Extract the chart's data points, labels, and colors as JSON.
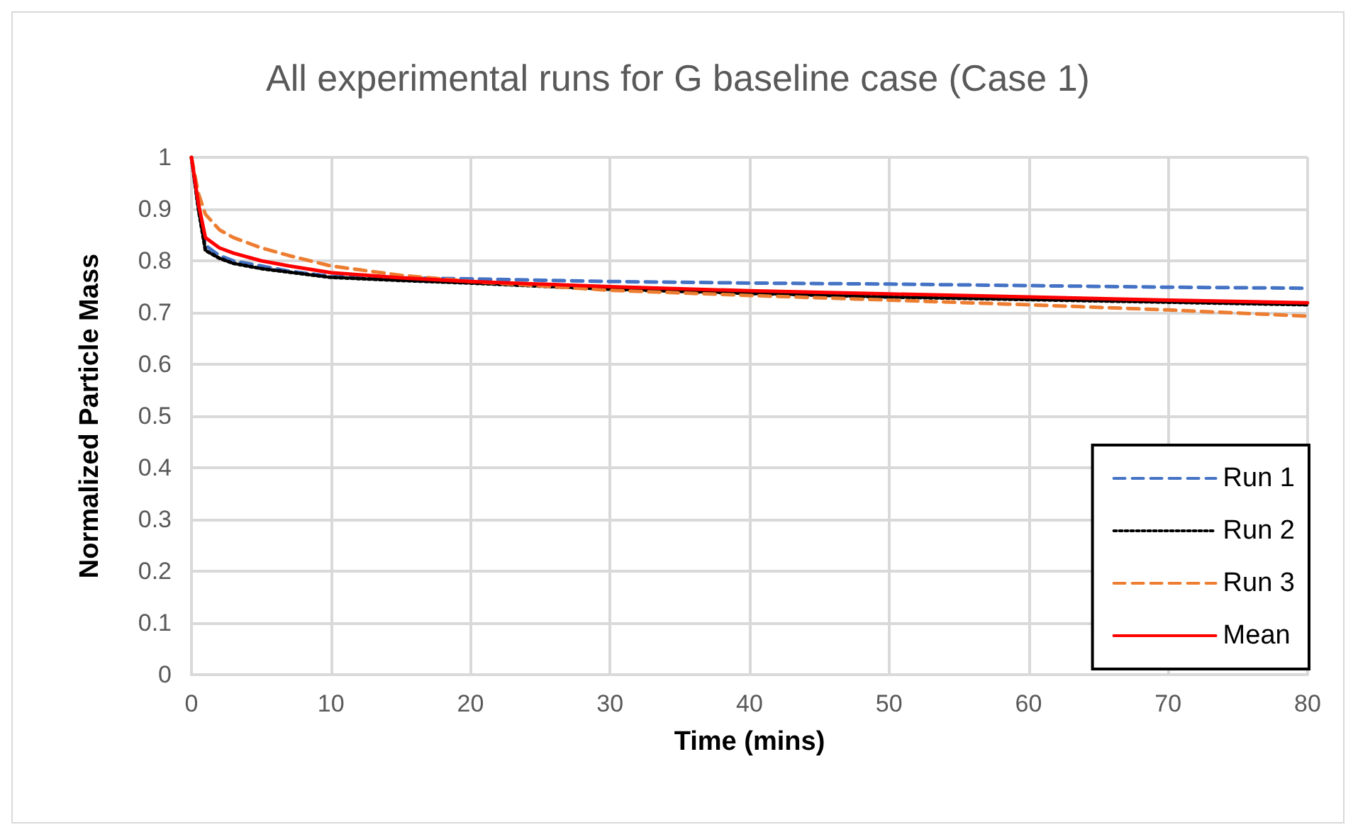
{
  "chart_data": {
    "type": "line",
    "title": "All experimental runs for G baseline case (Case 1)",
    "xlabel": "Time (mins)",
    "ylabel": "Normalized Particle Mass",
    "x": [
      0,
      0.5,
      1,
      2,
      3,
      5,
      7,
      10,
      15,
      20,
      30,
      40,
      50,
      60,
      70,
      80
    ],
    "series": [
      {
        "name": "Run 1",
        "color": "#4472c4",
        "line_style": "dashed",
        "values": [
          1,
          0.9,
          0.83,
          0.81,
          0.8,
          0.79,
          0.78,
          0.77,
          0.767,
          0.765,
          0.76,
          0.757,
          0.755,
          0.752,
          0.749,
          0.747
        ]
      },
      {
        "name": "Run 2",
        "color": "#000000",
        "line_style": "dotted",
        "values": [
          1,
          0.9,
          0.82,
          0.805,
          0.795,
          0.785,
          0.778,
          0.768,
          0.762,
          0.757,
          0.745,
          0.737,
          0.73,
          0.725,
          0.72,
          0.715
        ]
      },
      {
        "name": "Run 3",
        "color": "#ed7d31",
        "line_style": "dashed",
        "values": [
          1,
          0.93,
          0.89,
          0.86,
          0.845,
          0.825,
          0.81,
          0.79,
          0.772,
          0.76,
          0.743,
          0.733,
          0.724,
          0.715,
          0.705,
          0.693
        ]
      },
      {
        "name": "Mean",
        "color": "#ff0000",
        "line_style": "solid",
        "values": [
          1,
          0.91,
          0.845,
          0.825,
          0.815,
          0.8,
          0.79,
          0.777,
          0.767,
          0.76,
          0.75,
          0.742,
          0.736,
          0.73,
          0.724,
          0.719
        ]
      }
    ],
    "xlim": [
      0,
      80
    ],
    "xticks": [
      0,
      10,
      20,
      30,
      40,
      50,
      60,
      70,
      80
    ],
    "ylim": [
      0,
      1
    ],
    "yticks": [
      0,
      0.1,
      0.2,
      0.3,
      0.4,
      0.5,
      0.6,
      0.7,
      0.8,
      0.9,
      1
    ],
    "grid": true,
    "legend": "bottom right",
    "marker": "none"
  }
}
